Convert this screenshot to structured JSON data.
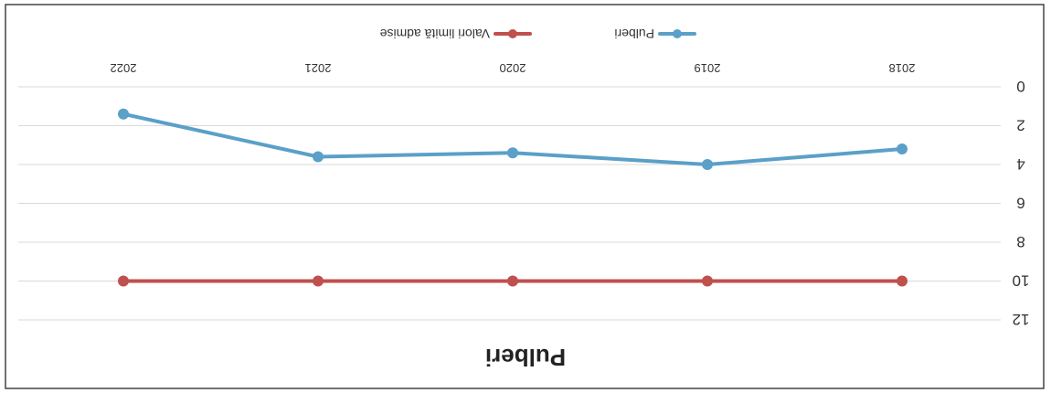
{
  "chart_data": {
    "type": "line",
    "title": "Pulberi",
    "xlabel": "",
    "ylabel": "",
    "categories": [
      "2018",
      "2019",
      "2020",
      "2021",
      "2022"
    ],
    "ylim": [
      0,
      12
    ],
    "yticks": [
      0,
      2,
      4,
      6,
      8,
      10,
      12
    ],
    "grid": true,
    "legend": "bottom",
    "orientation": "rotated-180",
    "series": [
      {
        "name": "Pulberi",
        "color": "#5aa0c8",
        "values": [
          3.2,
          4.0,
          3.4,
          3.6,
          1.4
        ]
      },
      {
        "name": "Valori limită admise",
        "color": "#c0504d",
        "values": [
          10,
          10,
          10,
          10,
          10
        ]
      }
    ]
  }
}
